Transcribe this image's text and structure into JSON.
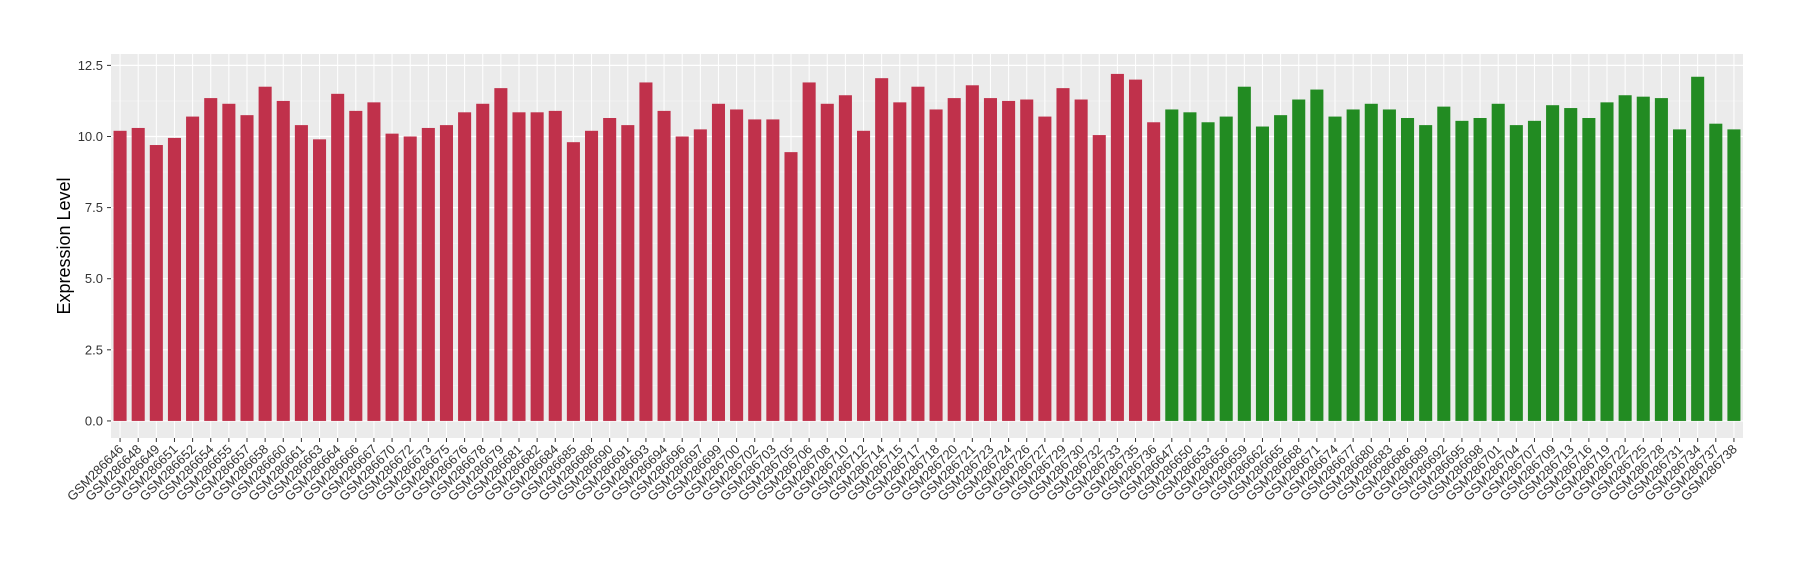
{
  "chart_data": {
    "type": "bar",
    "y_label": "Expression Level",
    "categories": [
      "GSM286646",
      "GSM286648",
      "GSM286649",
      "GSM286651",
      "GSM286652",
      "GSM286654",
      "GSM286655",
      "GSM286657",
      "GSM286658",
      "GSM286660",
      "GSM286661",
      "GSM286663",
      "GSM286664",
      "GSM286666",
      "GSM286667",
      "GSM286670",
      "GSM286672",
      "GSM286673",
      "GSM286675",
      "GSM286676",
      "GSM286678",
      "GSM286679",
      "GSM286681",
      "GSM286682",
      "GSM286684",
      "GSM286685",
      "GSM286688",
      "GSM286690",
      "GSM286691",
      "GSM286693",
      "GSM286694",
      "GSM286696",
      "GSM286697",
      "GSM286699",
      "GSM286700",
      "GSM286702",
      "GSM286703",
      "GSM286705",
      "GSM286706",
      "GSM286708",
      "GSM286710",
      "GSM286712",
      "GSM286714",
      "GSM286715",
      "GSM286717",
      "GSM286718",
      "GSM286720",
      "GSM286721",
      "GSM286723",
      "GSM286724",
      "GSM286726",
      "GSM286727",
      "GSM286729",
      "GSM286730",
      "GSM286732",
      "GSM286733",
      "GSM286735",
      "GSM286736",
      "GSM286647",
      "GSM286650",
      "GSM286653",
      "GSM286656",
      "GSM286659",
      "GSM286662",
      "GSM286665",
      "GSM286668",
      "GSM286671",
      "GSM286674",
      "GSM286677",
      "GSM286680",
      "GSM286683",
      "GSM286686",
      "GSM286689",
      "GSM286692",
      "GSM286695",
      "GSM286698",
      "GSM286701",
      "GSM286704",
      "GSM286707",
      "GSM286709",
      "GSM286713",
      "GSM286716",
      "GSM286719",
      "GSM286722",
      "GSM286725",
      "GSM286728",
      "GSM286731",
      "GSM286734",
      "GSM286737",
      "GSM286738"
    ],
    "series": [
      {
        "color": "#c0314b",
        "values": [
          10.2,
          10.3,
          9.7,
          9.95,
          10.7,
          11.35,
          11.15,
          10.75,
          11.75,
          11.25,
          10.4,
          9.9,
          11.5,
          10.9,
          11.2,
          10.1,
          10.0,
          10.3,
          10.4,
          10.85,
          11.15,
          11.7,
          10.85,
          10.85,
          10.9,
          9.8,
          10.2,
          10.65,
          10.4,
          11.9,
          10.9,
          10.0,
          10.25,
          11.15,
          10.95,
          10.6,
          10.6,
          9.45,
          11.9,
          11.15,
          11.45,
          10.2,
          12.05,
          11.2,
          11.75,
          10.95,
          11.35,
          11.8,
          11.35,
          11.25,
          11.3,
          10.7,
          11.7,
          11.3,
          10.05,
          12.2,
          12.0,
          10.5,
          null,
          null,
          null,
          null,
          null,
          null,
          null,
          null,
          null,
          null,
          null,
          null,
          null,
          null,
          null,
          null,
          null,
          null,
          null,
          null,
          null,
          null,
          null,
          null,
          null,
          null,
          null,
          null,
          null,
          null,
          null,
          null
        ]
      },
      {
        "color": "#228b22",
        "values": [
          null,
          null,
          null,
          null,
          null,
          null,
          null,
          null,
          null,
          null,
          null,
          null,
          null,
          null,
          null,
          null,
          null,
          null,
          null,
          null,
          null,
          null,
          null,
          null,
          null,
          null,
          null,
          null,
          null,
          null,
          null,
          null,
          null,
          null,
          null,
          null,
          null,
          null,
          null,
          null,
          null,
          null,
          null,
          null,
          null,
          null,
          null,
          null,
          null,
          null,
          null,
          null,
          null,
          null,
          null,
          null,
          null,
          null,
          10.95,
          10.85,
          10.5,
          10.7,
          11.75,
          10.35,
          10.75,
          11.3,
          11.65,
          10.7,
          10.95,
          11.15,
          10.95,
          10.65,
          10.4,
          11.05,
          10.55,
          10.65,
          11.15,
          10.4,
          10.55,
          11.1,
          11.0,
          10.65,
          11.2,
          11.45,
          11.4,
          11.35,
          10.25,
          12.1,
          10.45,
          10.25
        ]
      }
    ],
    "ylim": [
      -0.6,
      12.9
    ],
    "yticks": [
      {
        "value": 0,
        "label": "0.0"
      },
      {
        "value": 2.5,
        "label": "2.5"
      },
      {
        "value": 5,
        "label": "5.0"
      },
      {
        "value": 7.5,
        "label": "7.5"
      },
      {
        "value": 10,
        "label": "10.0"
      },
      {
        "value": 12.5,
        "label": "12.5"
      }
    ],
    "grid": true
  }
}
